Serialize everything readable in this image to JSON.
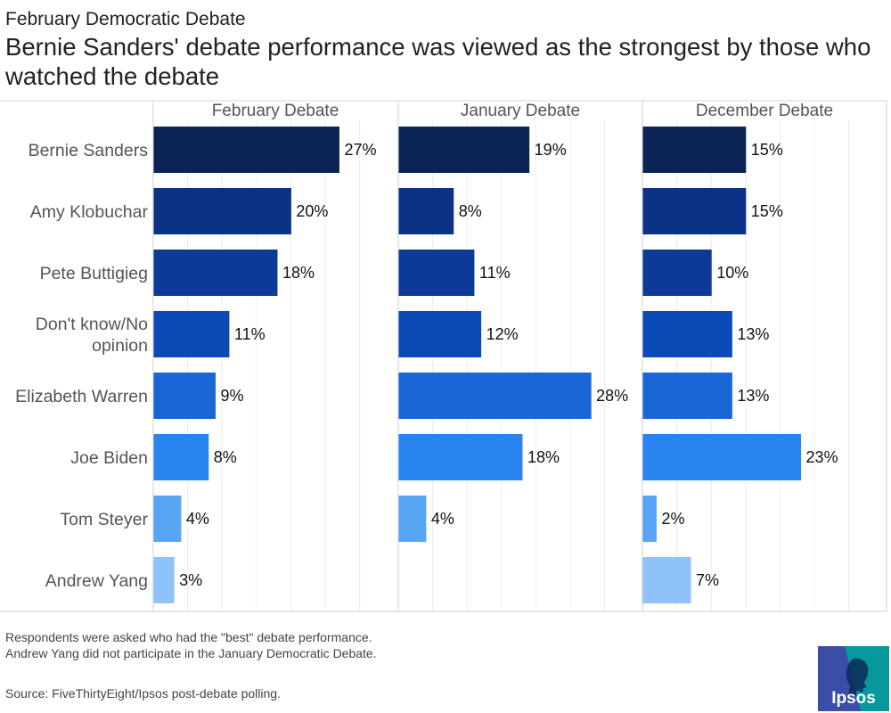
{
  "supertitle": "February Democratic Debate",
  "title": "Bernie Sanders' debate performance was viewed as the strongest by those who watched the debate",
  "notes": {
    "line1": "Respondents were asked who had the \"best\" debate performance.",
    "line2": "Andrew Yang did not participate in the January Democratic Debate.",
    "source": "Source: FiveThirtyEight/Ipsos post-debate polling."
  },
  "logo": {
    "text": "Ipsos",
    "bg": "#3a4ea8",
    "accent": "#00a59a"
  },
  "colors": {
    "Bernie Sanders": "#0a2454",
    "Amy Klobuchar": "#0b3285",
    "Pete Buttigieg": "#0b3a99",
    "Don't know/No opinion": "#0b4bb8",
    "Elizabeth Warren": "#1a66d6",
    "Joe Biden": "#2a84f0",
    "Tom Steyer": "#58a5f5",
    "Andrew Yang": "#90c2fa"
  },
  "chart_data": {
    "type": "bar",
    "orientation": "horizontal",
    "categories": [
      "Bernie Sanders",
      "Amy Klobuchar",
      "Pete Buttigieg",
      "Don't know/No opinion",
      "Elizabeth Warren",
      "Joe Biden",
      "Tom Steyer",
      "Andrew Yang"
    ],
    "category_labels": [
      [
        "Bernie Sanders"
      ],
      [
        "Amy Klobuchar"
      ],
      [
        "Pete Buttigieg"
      ],
      [
        "Don't know/No",
        "opinion"
      ],
      [
        "Elizabeth Warren"
      ],
      [
        "Joe Biden"
      ],
      [
        "Tom Steyer"
      ],
      [
        "Andrew Yang"
      ]
    ],
    "unit": "%",
    "xlim": [
      0,
      30
    ],
    "grid": true,
    "panels": [
      {
        "name": "February Debate",
        "values": [
          27,
          20,
          18,
          11,
          9,
          8,
          4,
          3
        ]
      },
      {
        "name": "January Debate",
        "values": [
          19,
          8,
          11,
          12,
          28,
          18,
          4,
          null
        ]
      },
      {
        "name": "December Debate",
        "values": [
          15,
          15,
          10,
          13,
          13,
          23,
          2,
          7
        ]
      }
    ]
  }
}
